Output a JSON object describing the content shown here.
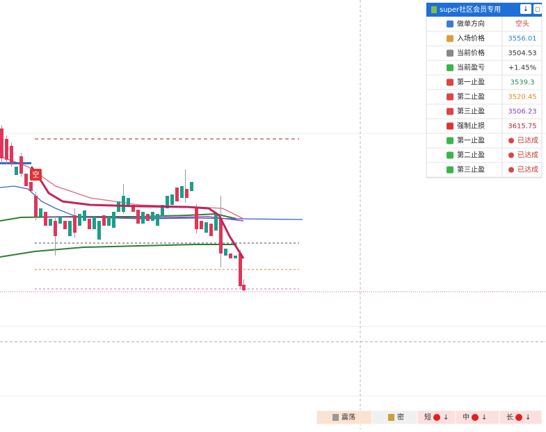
{
  "signal_label": "空",
  "panel": {
    "title": "super社区会员专用",
    "header_buttons": [
      "↓",
      "▢"
    ],
    "rows": [
      {
        "label": "做单方向",
        "value": "空头",
        "color": "#d23a3a"
      },
      {
        "label": "入场价格",
        "value": "3556.01",
        "color": "#2b86c5"
      },
      {
        "label": "当前价格",
        "value": "3504.53",
        "color": "#333333"
      },
      {
        "label": "当前盈亏",
        "value": "+1.45%",
        "color": "#333333"
      },
      {
        "label": "第一止盈",
        "value": "3539.3",
        "color": "#2e8b57"
      },
      {
        "label": "第二止盈",
        "value": "3520.45",
        "color": "#e08a1e"
      },
      {
        "label": "第三止盈",
        "value": "3506.23",
        "color": "#8a3fb8"
      },
      {
        "label": "强制止损",
        "value": "3615.75",
        "color": "#b03030"
      },
      {
        "label": "第一止盈",
        "value": "已达成",
        "color": "#c0392b"
      },
      {
        "label": "第二止盈",
        "value": "已达成",
        "color": "#c0392b"
      },
      {
        "label": "第三止盈",
        "value": "已达成",
        "color": "#c0392b"
      }
    ]
  },
  "toolbar": {
    "buttons": [
      "震荡",
      "密",
      "短",
      "中",
      "长"
    ],
    "arrow": "↓"
  }
}
